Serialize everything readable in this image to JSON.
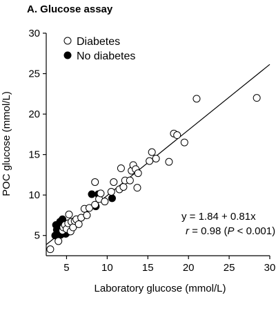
{
  "panel_title": "A. Glucose assay",
  "chart_data": {
    "type": "scatter",
    "xlabel": "Laboratory glucose (mmol/L)",
    "ylabel": "POC glucose (mmol/L)",
    "xlim": [
      2.5,
      30
    ],
    "ylim": [
      2.5,
      30
    ],
    "x_ticks": [
      5,
      10,
      15,
      20,
      25,
      30
    ],
    "y_ticks": [
      5,
      10,
      15,
      20,
      25,
      30
    ],
    "grid": false,
    "legend_position": "top-left",
    "series": [
      {
        "name": "Diabetes",
        "marker": "open-circle",
        "color": "#000000",
        "points": [
          [
            3.0,
            3.3
          ],
          [
            4.0,
            4.3
          ],
          [
            4.5,
            5.6
          ],
          [
            4.6,
            6.0
          ],
          [
            4.8,
            6.3
          ],
          [
            5.0,
            5.8
          ],
          [
            5.2,
            6.5
          ],
          [
            5.3,
            7.6
          ],
          [
            5.5,
            5.5
          ],
          [
            5.6,
            6.7
          ],
          [
            5.8,
            6.0
          ],
          [
            6.0,
            6.8
          ],
          [
            6.2,
            7.0
          ],
          [
            6.5,
            6.4
          ],
          [
            6.8,
            7.2
          ],
          [
            7.2,
            8.3
          ],
          [
            7.5,
            7.5
          ],
          [
            7.8,
            8.4
          ],
          [
            8.5,
            8.8
          ],
          [
            8.5,
            11.6
          ],
          [
            9.0,
            9.5
          ],
          [
            9.2,
            10.2
          ],
          [
            9.7,
            9.2
          ],
          [
            10.5,
            10.4
          ],
          [
            10.8,
            11.6
          ],
          [
            11.5,
            10.7
          ],
          [
            11.7,
            13.3
          ],
          [
            12.0,
            11.0
          ],
          [
            12.2,
            11.8
          ],
          [
            12.8,
            11.8
          ],
          [
            13.0,
            13.0
          ],
          [
            13.2,
            13.7
          ],
          [
            13.5,
            13.2
          ],
          [
            13.7,
            10.9
          ],
          [
            13.8,
            12.7
          ],
          [
            15.2,
            14.2
          ],
          [
            15.5,
            15.3
          ],
          [
            16.0,
            14.5
          ],
          [
            17.6,
            14.1
          ],
          [
            18.2,
            17.6
          ],
          [
            18.6,
            17.4
          ],
          [
            19.5,
            16.5
          ],
          [
            21.0,
            21.9
          ],
          [
            28.4,
            22.0
          ]
        ]
      },
      {
        "name": "No diabetes",
        "marker": "filled-circle",
        "color": "#000000",
        "points": [
          [
            3.6,
            5.0
          ],
          [
            3.7,
            6.3
          ],
          [
            3.8,
            5.7
          ],
          [
            3.9,
            5.2
          ],
          [
            4.0,
            6.0
          ],
          [
            4.1,
            5.4
          ],
          [
            4.2,
            5.8
          ],
          [
            4.3,
            5.1
          ],
          [
            4.4,
            6.4
          ],
          [
            4.4,
            5.5
          ],
          [
            4.5,
            7.0
          ],
          [
            4.6,
            5.3
          ],
          [
            4.7,
            5.9
          ],
          [
            4.8,
            5.6
          ],
          [
            4.9,
            5.2
          ],
          [
            5.0,
            6.0
          ],
          [
            5.1,
            5.4
          ],
          [
            5.2,
            5.7
          ],
          [
            5.4,
            5.5
          ],
          [
            5.5,
            6.3
          ],
          [
            4.2,
            6.7
          ],
          [
            3.9,
            5.5
          ],
          [
            8.1,
            10.1
          ],
          [
            8.6,
            8.6
          ],
          [
            8.9,
            10.1
          ],
          [
            10.6,
            9.6
          ]
        ]
      }
    ],
    "fit_line": {
      "intercept": 1.84,
      "slope": 0.81,
      "x_range": [
        2.5,
        30
      ]
    },
    "annotation": {
      "equation": "y = 1.84 + 0.81x",
      "r_symbol": "r",
      "r_value": " = 0.98 (",
      "p_symbol": "P",
      "p_value": " < 0.001)"
    }
  }
}
